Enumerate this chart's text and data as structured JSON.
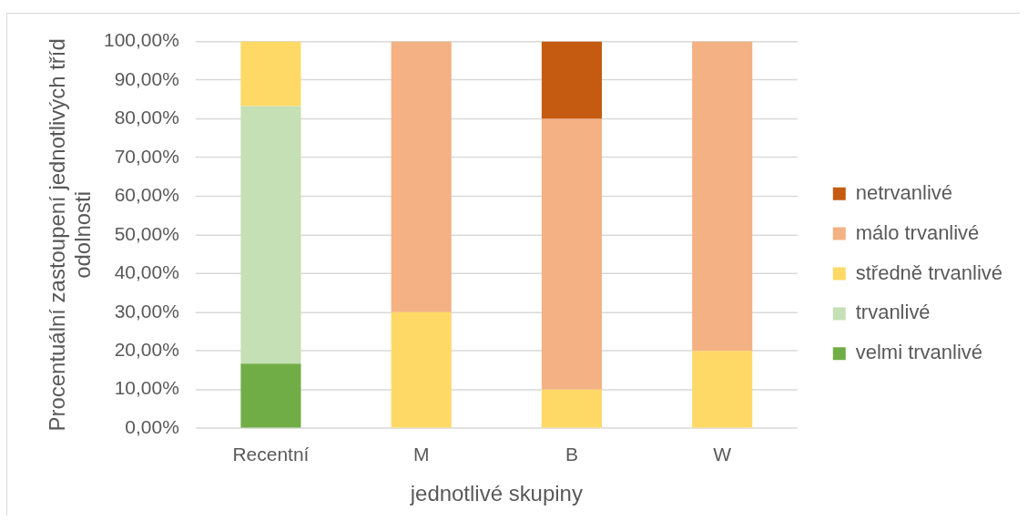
{
  "chart_data": {
    "type": "bar",
    "stacked": true,
    "xlabel": "jednotlivé skupiny",
    "ylabel": "Procentuální zastoupení jednotlivých tříd odolnosti",
    "categories": [
      "Recentní",
      "M",
      "B",
      "W"
    ],
    "series": [
      {
        "name": "velmi trvanlivé",
        "color": "#70ad47",
        "values": [
          16.7,
          null,
          null,
          null
        ]
      },
      {
        "name": "trvanlivé",
        "color": "#c5e0b4",
        "values": [
          66.6,
          null,
          null,
          null
        ]
      },
      {
        "name": "středně trvanlivé",
        "color": "#ffd966",
        "values": [
          16.7,
          30,
          10,
          20
        ]
      },
      {
        "name": "málo trvanlivé",
        "color": "#f4b183",
        "values": [
          null,
          70,
          70,
          80
        ]
      },
      {
        "name": "netrvanlivé",
        "color": "#c55a11",
        "values": [
          null,
          null,
          20,
          null
        ]
      }
    ],
    "ylim": [
      0,
      100
    ],
    "yticks": [
      {
        "value": 0,
        "label": "0,00%"
      },
      {
        "value": 10,
        "label": "10,00%"
      },
      {
        "value": 20,
        "label": "20,00%"
      },
      {
        "value": 30,
        "label": "30,00%"
      },
      {
        "value": 40,
        "label": "40,00%"
      },
      {
        "value": 50,
        "label": "50,00%"
      },
      {
        "value": 60,
        "label": "60,00%"
      },
      {
        "value": 70,
        "label": "70,00%"
      },
      {
        "value": 80,
        "label": "80,00%"
      },
      {
        "value": 90,
        "label": "90,00%"
      },
      {
        "value": 100,
        "label": "100,00%"
      }
    ],
    "grid": "y",
    "legend": "right"
  }
}
